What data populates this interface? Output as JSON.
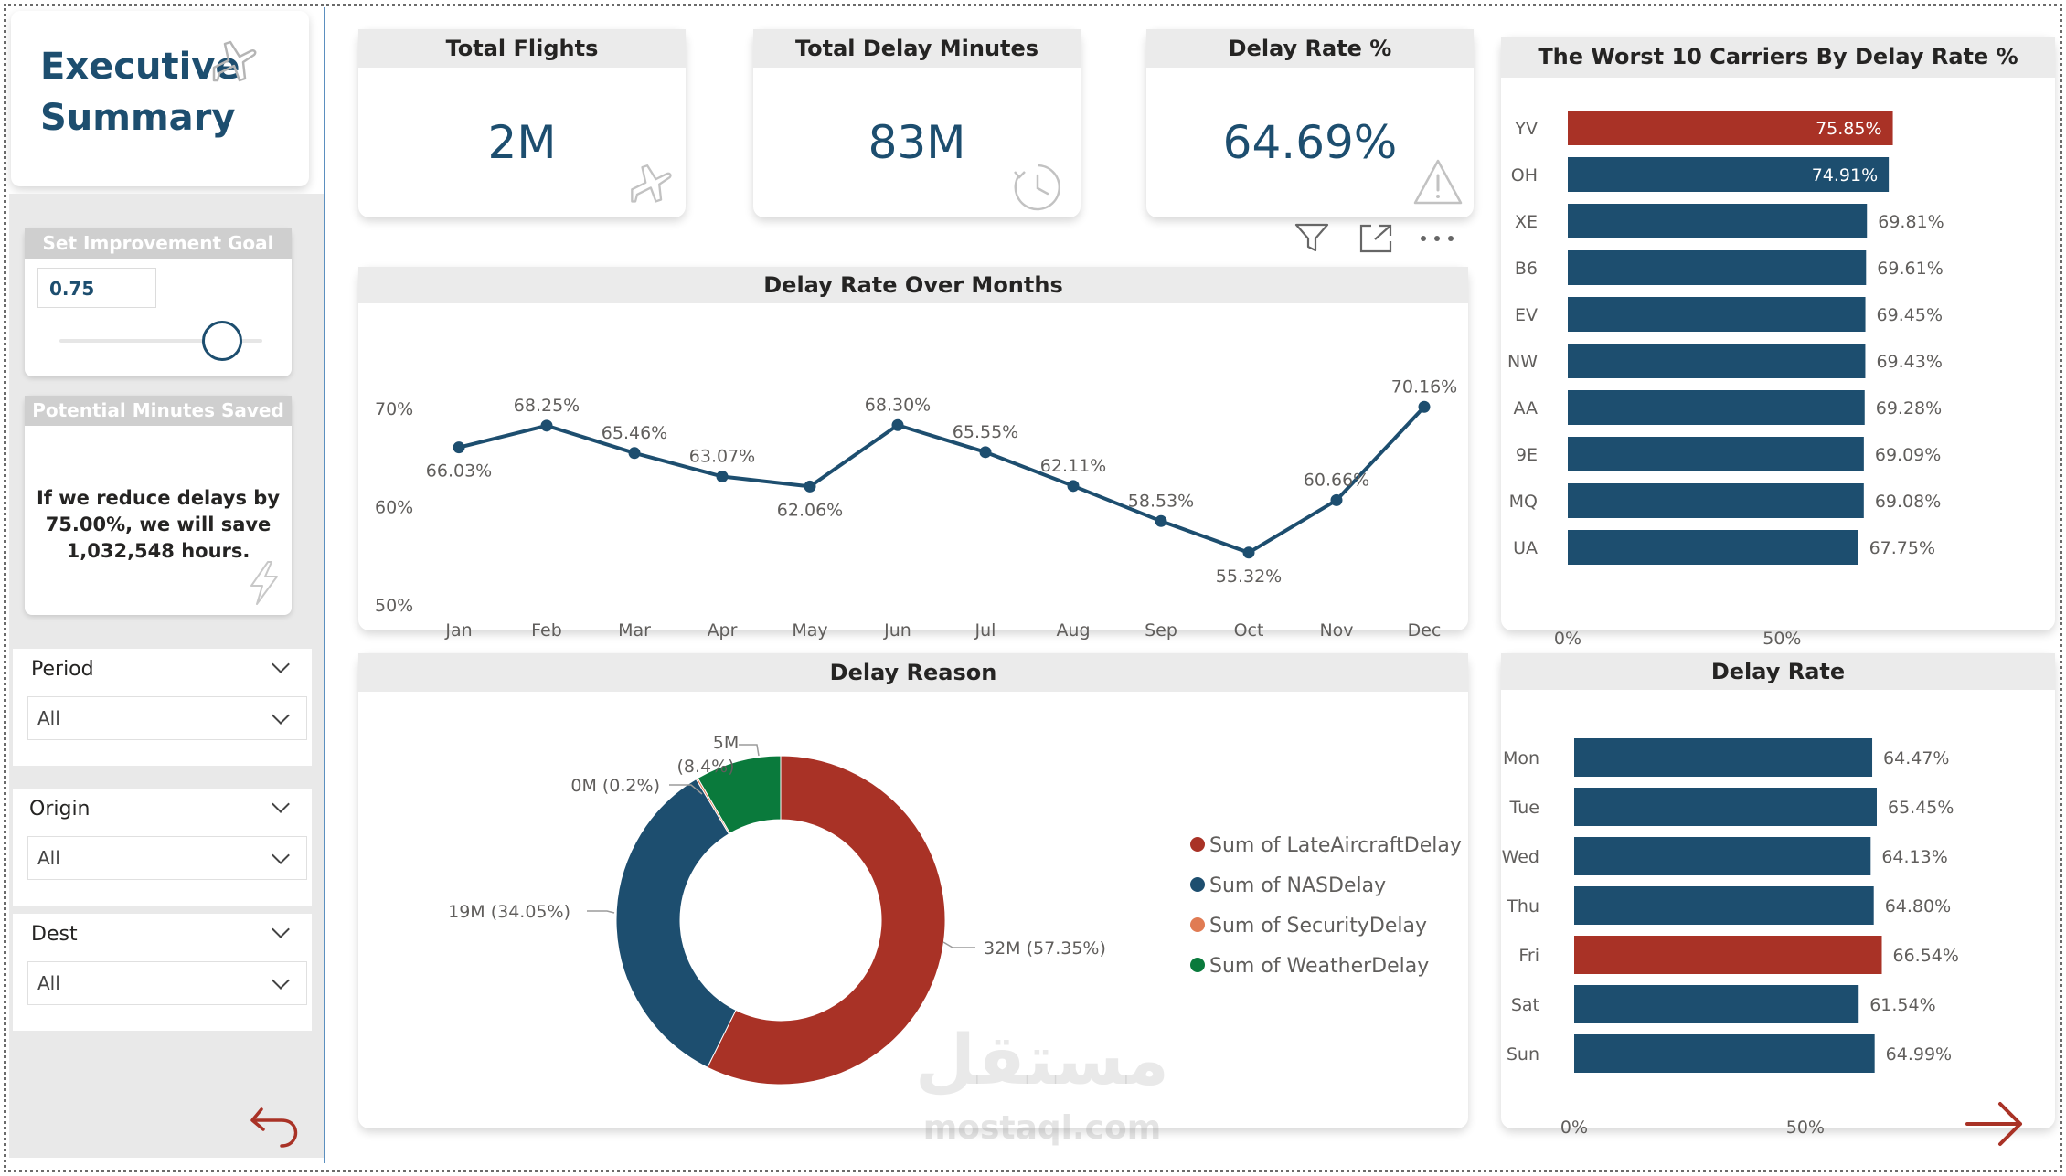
{
  "sidebar": {
    "title_line1": "Executive",
    "title_line2": "Summary",
    "goal": {
      "header": "Set Improvement Goal",
      "value": "0.75",
      "slider_fraction": 0.8
    },
    "saved": {
      "header": "Potential Minutes Saved",
      "text": "If we reduce delays by 75.00%, we will save 1,032,548 hours."
    },
    "filters": [
      {
        "title": "Period",
        "value": "All"
      },
      {
        "title": "Origin",
        "value": "All"
      },
      {
        "title": "Dest",
        "value": "All"
      }
    ]
  },
  "kpis": [
    {
      "title": "Total Flights",
      "value": "2M",
      "icon": "airplane-icon"
    },
    {
      "title": "Total Delay Minutes",
      "value": "83M",
      "icon": "clock-icon"
    },
    {
      "title": "Delay Rate %",
      "value": "64.69%",
      "icon": "warning-icon"
    }
  ],
  "colors": {
    "primary": "#1d4e6f",
    "highlight": "#a93226",
    "green": "#0a7a3c",
    "orange": "#e07b53",
    "title": "#1d4e6f"
  },
  "watermark": {
    "arabic": "مستقل",
    "latin": "mostaql.com"
  },
  "chart_data": [
    {
      "type": "line",
      "title": "Delay Rate Over Months",
      "categories": [
        "Jan",
        "Feb",
        "Mar",
        "Apr",
        "May",
        "Jun",
        "Jul",
        "Aug",
        "Sep",
        "Oct",
        "Nov",
        "Dec"
      ],
      "values": [
        66.03,
        68.25,
        65.46,
        63.07,
        62.06,
        68.3,
        65.55,
        62.11,
        58.53,
        55.32,
        60.66,
        70.16
      ],
      "labels": [
        "66.03%",
        "68.25%",
        "65.46%",
        "63.07%",
        "62.06%",
        "68.30%",
        "65.55%",
        "62.11%",
        "58.53%",
        "55.32%",
        "60.66%",
        "70.16%"
      ],
      "ylim": [
        50,
        70
      ],
      "yticks": [
        "50%",
        "60%",
        "70%"
      ]
    },
    {
      "type": "bar",
      "orientation": "horizontal",
      "title": "The Worst 10 Carriers By Delay Rate %",
      "categories": [
        "YV",
        "OH",
        "XE",
        "B6",
        "EV",
        "NW",
        "AA",
        "9E",
        "MQ",
        "UA"
      ],
      "values": [
        75.85,
        74.91,
        69.81,
        69.61,
        69.45,
        69.43,
        69.28,
        69.09,
        69.08,
        67.75
      ],
      "labels": [
        "75.85%",
        "74.91%",
        "69.81%",
        "69.61%",
        "69.45%",
        "69.43%",
        "69.28%",
        "69.09%",
        "69.08%",
        "67.75%"
      ],
      "highlight_index": 0,
      "xlim": [
        0,
        80
      ],
      "xticks": [
        "0%",
        "50%"
      ]
    },
    {
      "type": "pie",
      "variant": "donut",
      "title": "Delay Reason",
      "series": [
        {
          "name": "Sum of LateAircraftDelay",
          "value": 57.35,
          "label": "32M (57.35%)",
          "color": "#a93226"
        },
        {
          "name": "Sum of NASDelay",
          "value": 34.05,
          "label": "19M (34.05%)",
          "color": "#1d4e6f"
        },
        {
          "name": "Sum of SecurityDelay",
          "value": 0.2,
          "label": "0M (0.2%)",
          "color": "#e07b53"
        },
        {
          "name": "Sum of WeatherDelay",
          "value": 8.4,
          "label_line1": "5M",
          "label_line2": "(8.4%)",
          "color": "#0a7a3c"
        }
      ]
    },
    {
      "type": "bar",
      "orientation": "horizontal",
      "title": "Delay Rate",
      "categories": [
        "Mon",
        "Tue",
        "Wed",
        "Thu",
        "Fri",
        "Sat",
        "Sun"
      ],
      "values": [
        64.47,
        65.45,
        64.13,
        64.8,
        66.54,
        61.54,
        64.99
      ],
      "labels": [
        "64.47%",
        "65.45%",
        "64.13%",
        "64.80%",
        "66.54%",
        "61.54%",
        "64.99%"
      ],
      "highlight_index": 4,
      "xlim": [
        0,
        70
      ],
      "xticks": [
        "0%",
        "50%"
      ]
    }
  ]
}
